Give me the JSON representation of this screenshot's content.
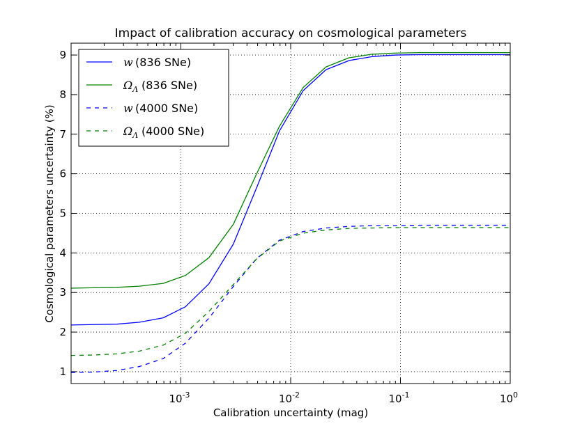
{
  "chart_data": {
    "type": "line",
    "title": "Impact of calibration accuracy on cosmological parameters",
    "xlabel": "Calibration uncertainty (mag)",
    "ylabel": "Cosmological parameters uncertainty (%)",
    "xscale": "log",
    "xlim": [
      0.0001,
      1
    ],
    "ylim": [
      0.7,
      9.3
    ],
    "x_ticks": [
      0.001,
      0.01,
      0.1,
      1
    ],
    "x_tick_labels": [
      {
        "base": "10",
        "exp": "-3"
      },
      {
        "base": "10",
        "exp": "-2"
      },
      {
        "base": "10",
        "exp": "-1"
      },
      {
        "base": "10",
        "exp": "0"
      }
    ],
    "y_ticks": [
      1,
      2,
      3,
      4,
      5,
      6,
      7,
      8,
      9
    ],
    "y_tick_labels": [
      "1",
      "2",
      "3",
      "4",
      "5",
      "6",
      "7",
      "8",
      "9"
    ],
    "grid": true,
    "legend_position": "top-left",
    "x": [
      0.0001,
      0.00016,
      0.00026,
      0.00042,
      0.00069,
      0.0011,
      0.0018,
      0.003,
      0.0049,
      0.0079,
      0.013,
      0.021,
      0.034,
      0.055,
      0.09,
      0.15,
      0.24,
      0.39,
      0.63,
      1
    ],
    "series": [
      {
        "name": "(836 SNe)",
        "symbol": "w",
        "color": "#0000ff",
        "dash": "solid",
        "values": [
          2.18,
          2.19,
          2.2,
          2.25,
          2.36,
          2.64,
          3.22,
          4.22,
          5.65,
          7.08,
          8.1,
          8.63,
          8.86,
          8.96,
          9.0,
          9.01,
          9.01,
          9.01,
          9.01,
          9.01
        ]
      },
      {
        "name": "(836 SNe)",
        "symbol": "Ω",
        "symbol_sub": "Λ",
        "color": "#008000",
        "dash": "solid",
        "values": [
          3.11,
          3.12,
          3.13,
          3.16,
          3.23,
          3.43,
          3.88,
          4.72,
          6.0,
          7.2,
          8.18,
          8.7,
          8.93,
          9.02,
          9.05,
          9.06,
          9.06,
          9.06,
          9.06,
          9.06
        ]
      },
      {
        "name": "(4000 SNe)",
        "symbol": "w",
        "color": "#0000ff",
        "dash": "dashed",
        "values": [
          0.98,
          0.99,
          1.03,
          1.13,
          1.33,
          1.72,
          2.35,
          3.15,
          3.86,
          4.32,
          4.54,
          4.63,
          4.67,
          4.69,
          4.69,
          4.7,
          4.7,
          4.7,
          4.7,
          4.7
        ]
      },
      {
        "name": "(4000 SNe)",
        "symbol": "Ω",
        "symbol_sub": "Λ",
        "color": "#008000",
        "dash": "dashed",
        "values": [
          1.41,
          1.42,
          1.45,
          1.52,
          1.67,
          1.97,
          2.52,
          3.2,
          3.85,
          4.3,
          4.5,
          4.58,
          4.62,
          4.63,
          4.64,
          4.64,
          4.64,
          4.64,
          4.64,
          4.64
        ]
      }
    ]
  }
}
